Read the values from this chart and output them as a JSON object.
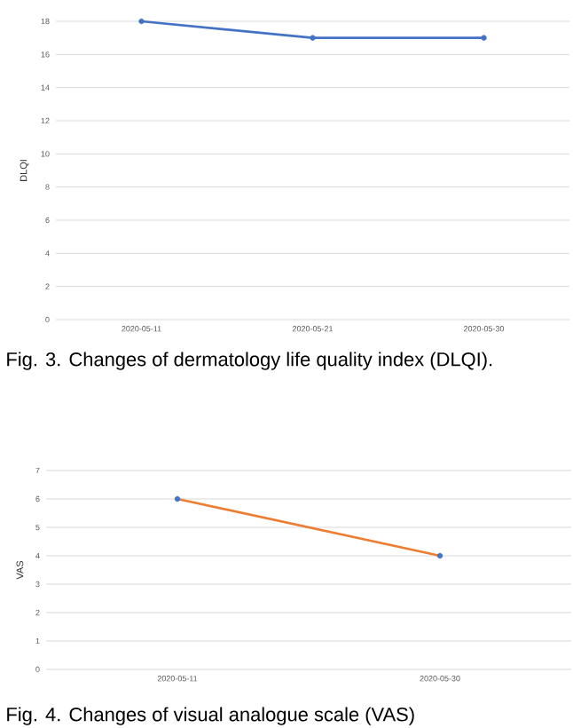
{
  "chart_data": [
    {
      "type": "line",
      "categories": [
        "2020-05-11",
        "2020-05-21",
        "2020-05-30"
      ],
      "ylabel": "DLQI",
      "ylim": [
        0,
        18
      ],
      "yticks": [
        0,
        2,
        4,
        6,
        8,
        10,
        12,
        14,
        16,
        18
      ],
      "grid": "y",
      "marker": "circle",
      "series": [
        {
          "color": "#4472c4",
          "values": [
            18,
            17,
            17
          ]
        }
      ],
      "annotations": [
        "Fig. 3. Changes of dermatology life quality index (DLQI)."
      ]
    },
    {
      "type": "line",
      "categories": [
        "2020-05-11",
        "2020-05-30"
      ],
      "ylabel": "VAS",
      "ylim": [
        0,
        7
      ],
      "yticks": [
        0,
        1,
        2,
        3,
        4,
        5,
        6,
        7
      ],
      "grid": "y",
      "marker": "circle",
      "series": [
        {
          "color": "#ed7d31",
          "colors": [
            "#4472c4",
            "#4472c4"
          ],
          "values": [
            6,
            4
          ]
        }
      ],
      "annotations": [
        "Fig. 4. Changes of visual analogue scale (VAS)"
      ]
    }
  ]
}
